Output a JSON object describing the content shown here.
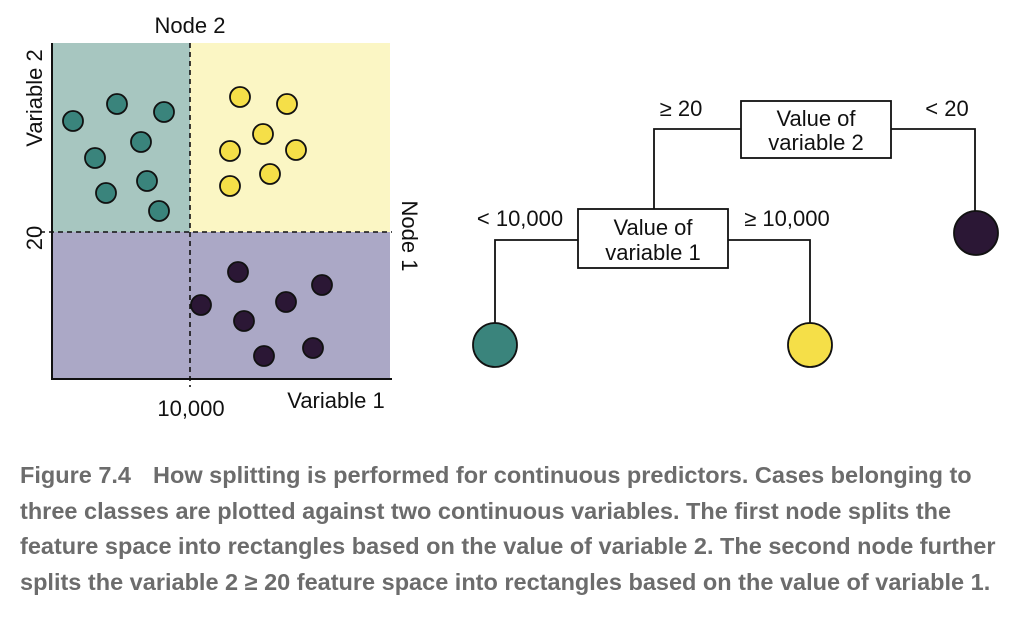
{
  "scatter": {
    "node2_label": "Node 2",
    "node1_label": "Node 1",
    "y_axis_label": "Variable 2",
    "x_axis_label": "Variable 1",
    "y_split_tick": "20",
    "x_split_tick": "10,000",
    "colors": {
      "teal_region": "#a7c6c0",
      "yellow_region": "#fbf6c4",
      "purple_region": "#aba8c6",
      "teal_point": "#3a847c",
      "yellow_point": "#f5df48",
      "purple_point": "#2b1735"
    }
  },
  "tree": {
    "root_line1": "Value of",
    "root_line2": "variable 2",
    "root_left_branch": "≥ 20",
    "root_right_branch": "< 20",
    "child_line1": "Value of",
    "child_line2": "variable 1",
    "child_left_branch": "< 10,000",
    "child_right_branch": "≥ 10,000",
    "leaf_colors": [
      "#3a847c",
      "#f5df48",
      "#2b1735"
    ]
  },
  "caption": {
    "label": "Figure 7.4",
    "text": "How splitting is performed for continuous predictors. Cases belonging to three classes are plotted against two continuous variables. The first node splits the feature space into rectangles based on the value of variable 2. The second node further splits the variable 2 ≥ 20 feature space into rectangles based on the value of variable 1."
  }
}
